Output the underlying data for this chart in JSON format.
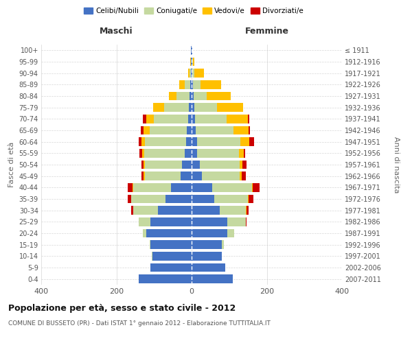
{
  "age_groups": [
    "0-4",
    "5-9",
    "10-14",
    "15-19",
    "20-24",
    "25-29",
    "30-34",
    "35-39",
    "40-44",
    "45-49",
    "50-54",
    "55-59",
    "60-64",
    "65-69",
    "70-74",
    "75-79",
    "80-84",
    "85-89",
    "90-94",
    "95-99",
    "100+"
  ],
  "birth_years": [
    "2007-2011",
    "2002-2006",
    "1997-2001",
    "1992-1996",
    "1987-1991",
    "1982-1986",
    "1977-1981",
    "1972-1976",
    "1967-1971",
    "1962-1966",
    "1957-1961",
    "1952-1956",
    "1947-1951",
    "1942-1946",
    "1937-1941",
    "1932-1936",
    "1927-1931",
    "1922-1926",
    "1917-1921",
    "1912-1916",
    "≤ 1911"
  ],
  "male": {
    "celibi": [
      140,
      110,
      105,
      110,
      120,
      110,
      90,
      70,
      55,
      30,
      25,
      18,
      15,
      12,
      10,
      8,
      5,
      3,
      2,
      1,
      1
    ],
    "coniugati": [
      0,
      0,
      1,
      2,
      10,
      30,
      65,
      90,
      100,
      95,
      100,
      108,
      110,
      100,
      90,
      65,
      35,
      15,
      3,
      1,
      0
    ],
    "vedovi": [
      0,
      0,
      0,
      0,
      0,
      0,
      0,
      1,
      2,
      2,
      3,
      5,
      8,
      15,
      20,
      30,
      20,
      15,
      5,
      1,
      0
    ],
    "divorziati": [
      0,
      0,
      0,
      0,
      0,
      1,
      5,
      8,
      12,
      7,
      5,
      7,
      8,
      8,
      10,
      0,
      0,
      0,
      0,
      0,
      0
    ]
  },
  "female": {
    "nubili": [
      110,
      90,
      80,
      80,
      95,
      95,
      75,
      60,
      55,
      28,
      22,
      14,
      14,
      11,
      9,
      7,
      5,
      4,
      2,
      2,
      1
    ],
    "coniugate": [
      0,
      0,
      1,
      5,
      18,
      50,
      70,
      90,
      105,
      100,
      105,
      112,
      115,
      100,
      85,
      60,
      35,
      20,
      5,
      1,
      0
    ],
    "vedove": [
      0,
      0,
      0,
      0,
      0,
      0,
      1,
      2,
      3,
      5,
      8,
      12,
      25,
      40,
      55,
      70,
      65,
      55,
      25,
      5,
      1
    ],
    "divorziate": [
      0,
      0,
      0,
      0,
      0,
      1,
      5,
      12,
      18,
      12,
      12,
      5,
      12,
      5,
      5,
      0,
      0,
      0,
      0,
      0,
      0
    ]
  },
  "colors": {
    "celibi": "#4472C4",
    "coniugati": "#c5d9a0",
    "vedovi": "#ffc000",
    "divorziati": "#cc0000"
  },
  "xlim": [
    -400,
    400
  ],
  "xticks": [
    -400,
    -200,
    0,
    200,
    400
  ],
  "xticklabels": [
    "400",
    "200",
    "0",
    "200",
    "400"
  ],
  "title": "Popolazione per età, sesso e stato civile - 2012",
  "subtitle": "COMUNE DI BUSSETO (PR) - Dati ISTAT 1° gennaio 2012 - Elaborazione TUTTITALIA.IT",
  "ylabel_left": "Fasce di età",
  "ylabel_right": "Anni di nascita",
  "maschi_label": "Maschi",
  "femmine_label": "Femmine",
  "legend_labels": [
    "Celibi/Nubili",
    "Coniugati/e",
    "Vedovi/e",
    "Divorziati/e"
  ],
  "bg_color": "#ffffff",
  "grid_color": "#cccccc"
}
